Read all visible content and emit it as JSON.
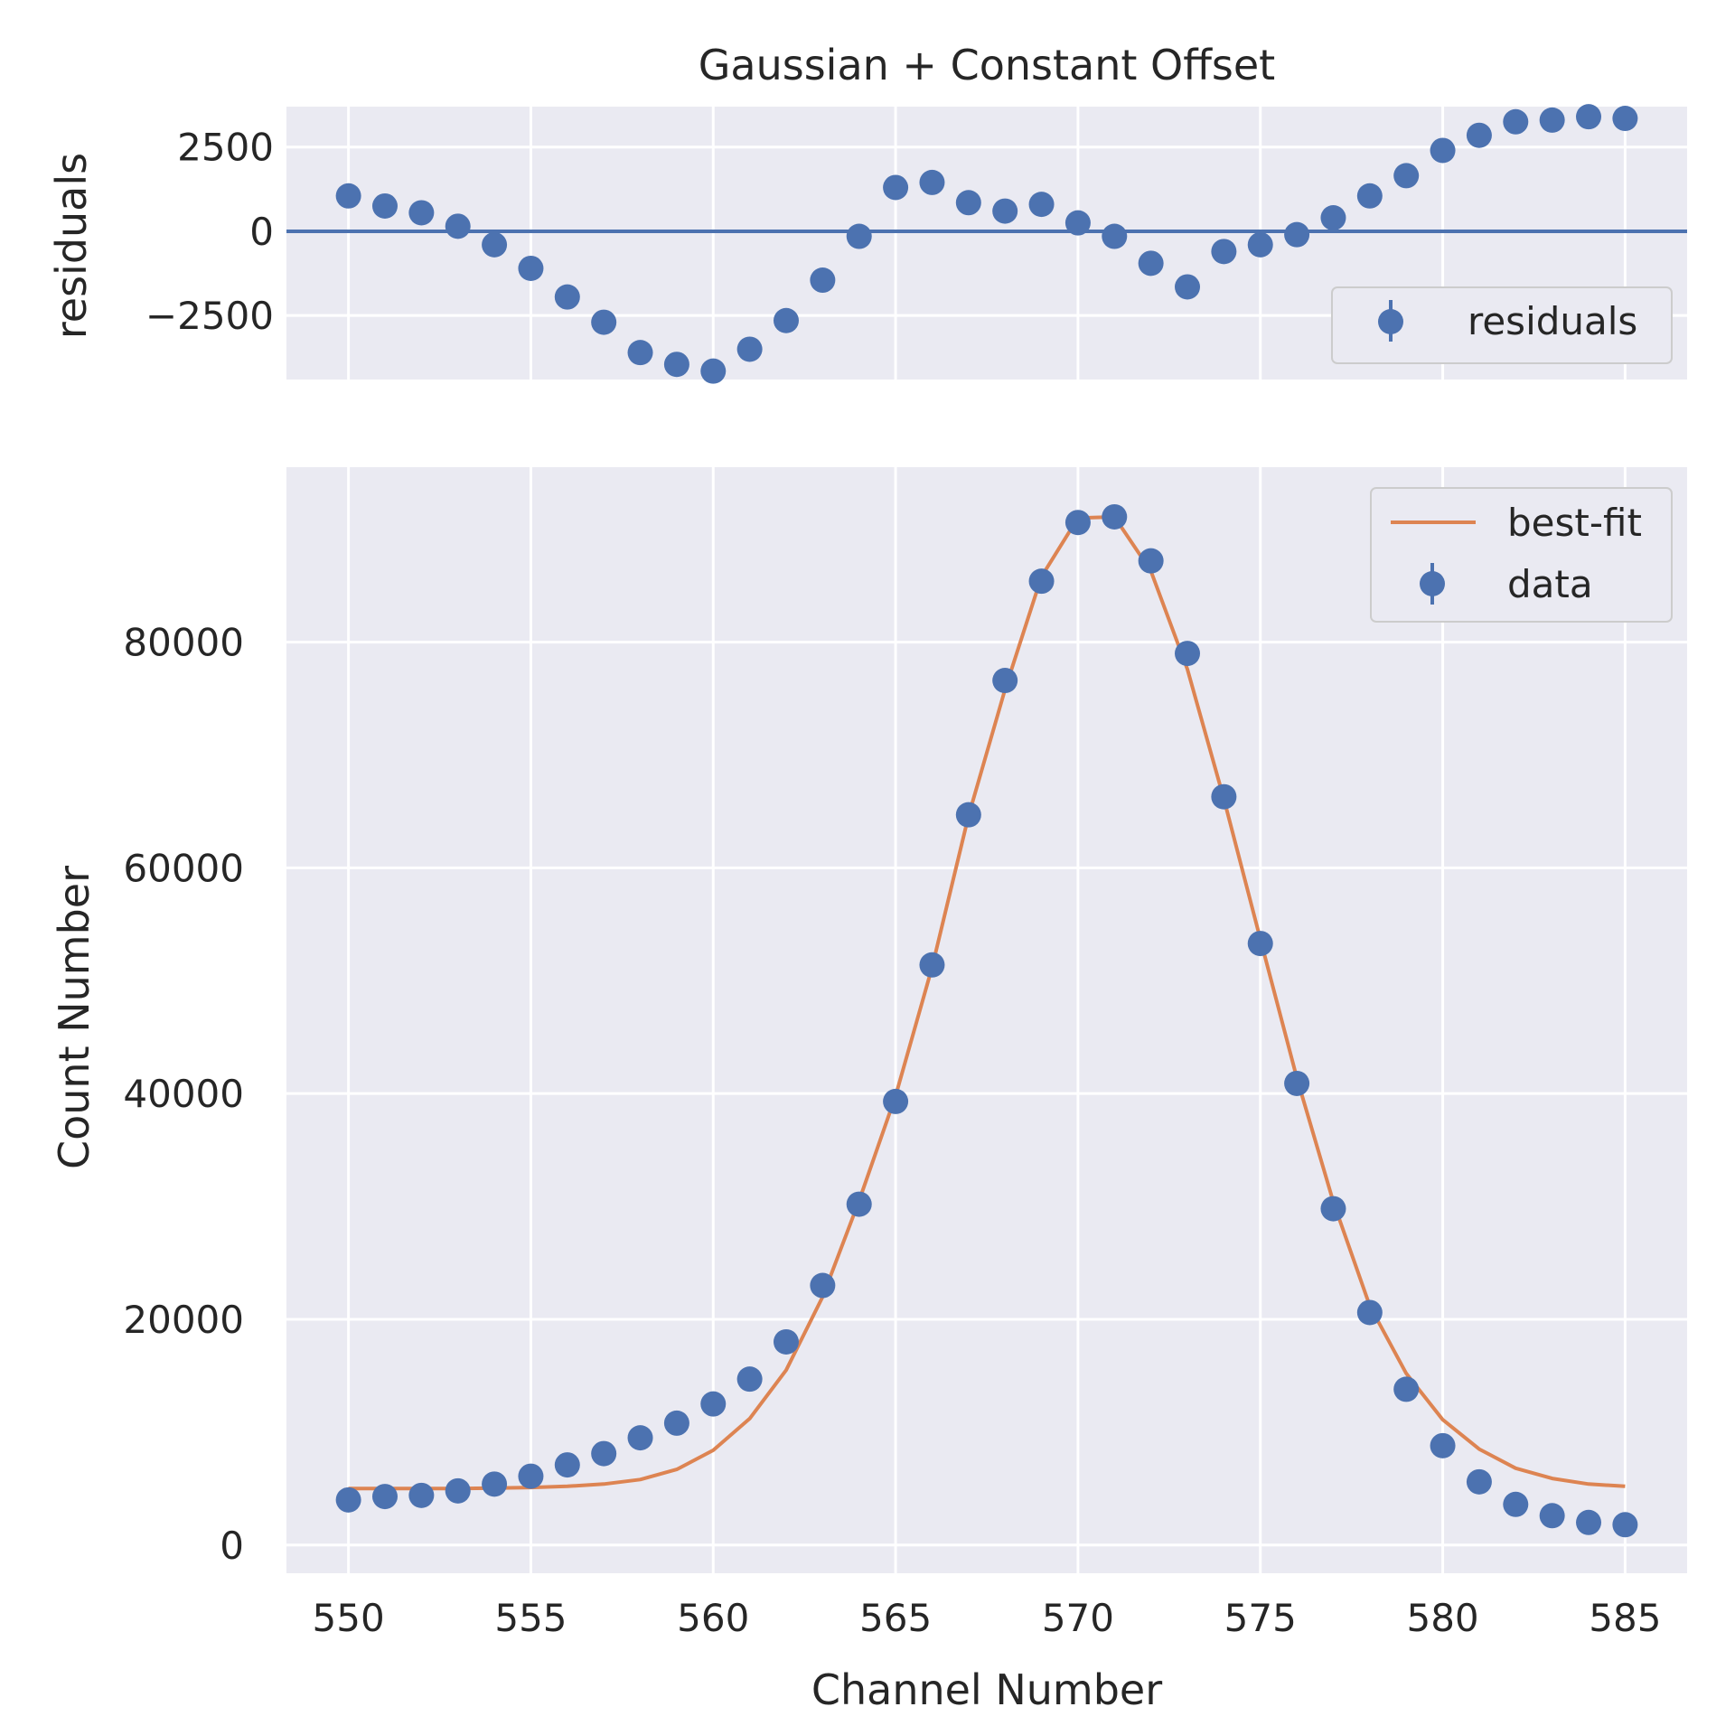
{
  "chart_data": [
    {
      "type": "scatter",
      "title": "Gaussian + Constant Offset",
      "xlabel": "",
      "ylabel": "residuals",
      "xlim": [
        548.3,
        586.7
      ],
      "ylim": [
        -4400,
        3700
      ],
      "yticks": [
        -2500,
        0,
        2500
      ],
      "ytick_labels": [
        "−2500",
        "0",
        "2500"
      ],
      "grid": true,
      "legend": "lower-right",
      "zero_line": 0,
      "series": [
        {
          "name": "residuals",
          "color": "#4c72b0",
          "x": [
            550,
            551,
            552,
            553,
            554,
            555,
            556,
            557,
            558,
            559,
            560,
            561,
            562,
            563,
            564,
            565,
            566,
            567,
            568,
            569,
            570,
            571,
            572,
            573,
            574,
            575,
            576,
            577,
            578,
            579,
            580,
            581,
            582,
            583,
            584,
            585
          ],
          "y": [
            1050,
            750,
            550,
            150,
            -400,
            -1100,
            -1950,
            -2700,
            -3600,
            -3950,
            -4150,
            -3500,
            -2650,
            -1450,
            -150,
            1300,
            1450,
            850,
            600,
            800,
            250,
            -150,
            -950,
            -1650,
            -600,
            -400,
            -100,
            400,
            1050,
            1650,
            2400,
            2850,
            3250,
            3300,
            3400,
            3350
          ]
        }
      ]
    },
    {
      "type": "scatter",
      "title": "",
      "xlabel": "Channel Number",
      "ylabel": "Count Number",
      "xlim": [
        548.3,
        586.7
      ],
      "ylim": [
        -2500,
        95500
      ],
      "xticks": [
        550,
        555,
        560,
        565,
        570,
        575,
        580,
        585
      ],
      "yticks": [
        0,
        20000,
        40000,
        60000,
        80000
      ],
      "grid": true,
      "legend": "top-right",
      "series": [
        {
          "name": "data",
          "color": "#4c72b0",
          "x": [
            550,
            551,
            552,
            553,
            554,
            555,
            556,
            557,
            558,
            559,
            560,
            561,
            562,
            563,
            564,
            565,
            566,
            567,
            568,
            569,
            570,
            571,
            572,
            573,
            574,
            575,
            576,
            577,
            578,
            579,
            580,
            581,
            582,
            583,
            584,
            585
          ],
          "y": [
            4000,
            4300,
            4400,
            4800,
            5400,
            6100,
            7100,
            8100,
            9500,
            10800,
            12500,
            14700,
            18000,
            23000,
            30200,
            39300,
            51400,
            64700,
            76600,
            85400,
            90600,
            91100,
            87200,
            79000,
            66300,
            53300,
            40900,
            29800,
            20600,
            13800,
            8800,
            5600,
            3600,
            2600,
            2000,
            1800
          ]
        },
        {
          "name": "best-fit",
          "color": "#dd8452",
          "x": [
            550,
            551,
            552,
            553,
            554,
            555,
            556,
            557,
            558,
            559,
            560,
            561,
            562,
            563,
            564,
            565,
            566,
            567,
            568,
            569,
            570,
            571,
            572,
            573,
            574,
            575,
            576,
            577,
            578,
            579,
            580,
            581,
            582,
            583,
            584,
            585
          ],
          "y": [
            5000,
            5000,
            5000,
            5000,
            5050,
            5100,
            5200,
            5400,
            5800,
            6700,
            8400,
            11200,
            15500,
            22000,
            30500,
            39800,
            51200,
            64600,
            75800,
            85800,
            91000,
            91100,
            86300,
            77600,
            66100,
            53700,
            41400,
            30400,
            21200,
            15200,
            11100,
            8500,
            6800,
            5900,
            5400,
            5200
          ]
        }
      ]
    }
  ]
}
